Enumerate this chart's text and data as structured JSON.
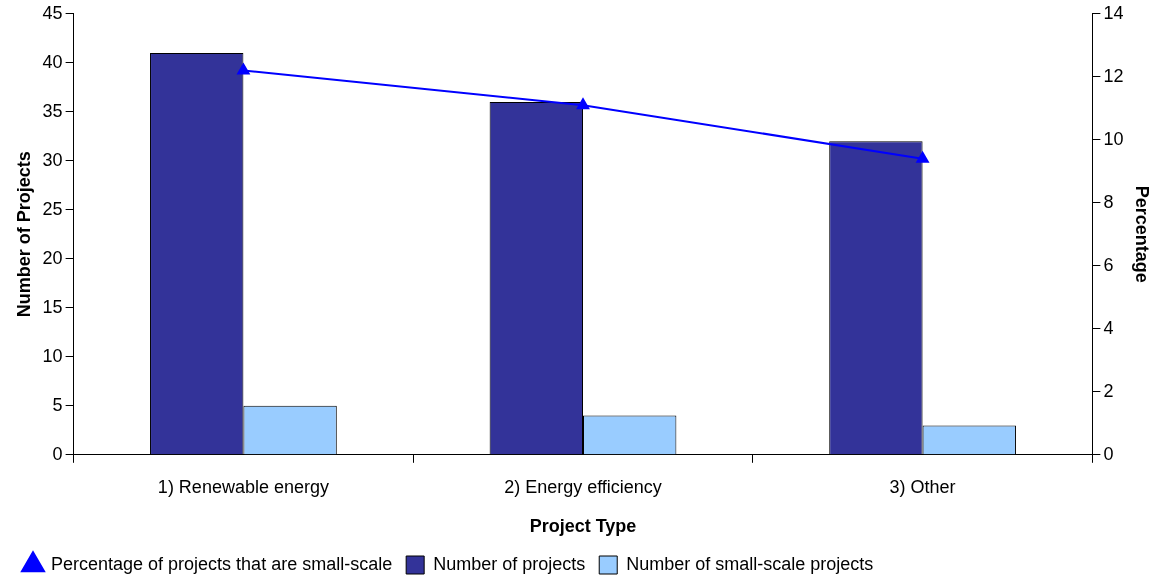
{
  "chart_data": {
    "type": "bar",
    "xlabel": "Project Type",
    "ylabel": "Number of Projects",
    "y2label": "Percentage",
    "categories": [
      "1) Renewable energy",
      "2) Energy efficiency",
      "3) Other"
    ],
    "series": [
      {
        "name": "Number of projects",
        "color": "#333399",
        "values": [
          41,
          36,
          32
        ]
      },
      {
        "name": "Number of small-scale projects",
        "color": "#99ccff",
        "values": [
          5,
          4,
          3
        ]
      },
      {
        "name": "Percentage of projects that are small-scale",
        "type": "line",
        "axis": "y2",
        "color": "#0000ff",
        "values": [
          12.2,
          11.1,
          9.4
        ]
      }
    ],
    "ylim": [
      0,
      45
    ],
    "yticks": [
      0,
      5,
      10,
      15,
      20,
      25,
      30,
      35,
      40,
      45
    ],
    "y2lim": [
      0,
      14
    ],
    "y2ticks": [
      0,
      2,
      4,
      6,
      8,
      10,
      12,
      14
    ],
    "grid": false,
    "legend": "bottom",
    "marker": "triangle"
  }
}
